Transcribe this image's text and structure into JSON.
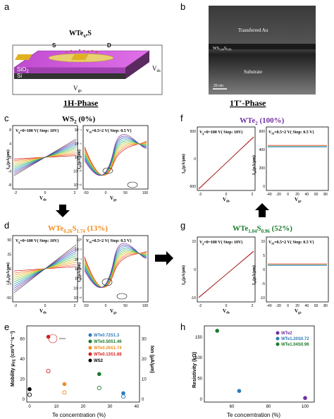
{
  "panels": {
    "a": {
      "letter": "a",
      "compound": "WTe",
      "x_sub": "x",
      "s_sub": "2(1-x)",
      "s": "S",
      "d": "D",
      "sio2": "SiO",
      "sio2_sub": "2",
      "si": "Si",
      "vds": "V",
      "vds_sub": "ds",
      "vgs": "V",
      "vgs_sub": "gs",
      "phase": "1H-Phase"
    },
    "b": {
      "letter": "b",
      "au": "Transferred Au",
      "ws": "WS",
      "ws_sub": "1.04",
      "ws_s": "S",
      "ws_sub2": "0.96",
      "substrate": "Substrate",
      "scale": "20 nm",
      "phase": "1T′-Phase"
    },
    "c": {
      "letter": "c",
      "title": "WS",
      "title_sub": "2",
      "title_pct": "(0%)",
      "left_legend": "V",
      "left_legend_sub": "g",
      "left_legend_rest": "=0~100 V( Step: 10V)",
      "right_legend": "V",
      "right_legend_sub": "ds",
      "right_legend_rest": "=0.5~2 V( Step: 0.5 V)",
      "left_yticks": [
        "8",
        "4",
        "0",
        "-4",
        "-8"
      ],
      "left_xticks": [
        "-2",
        "0",
        "2"
      ],
      "right_yticks": [
        "10⁻⁴",
        "10⁻⁶",
        "10⁻⁸",
        "10⁻¹⁰",
        "10⁻¹²"
      ],
      "right_xticks": [
        "-50",
        "0",
        "50",
        "100"
      ]
    },
    "d": {
      "letter": "d",
      "title": "WTe",
      "title_sub1": "0.26",
      "title_s": "S",
      "title_sub2": "1.74",
      "title_pct": "(13%)",
      "left_legend": "V",
      "left_legend_sub": "g",
      "left_legend_rest": "=0~100 V( Step: 10V)",
      "right_legend": "V",
      "right_legend_sub": "ds",
      "right_legend_rest": "=0.5~2 V( Step: 0.5 V)",
      "left_yticks": [
        "50",
        "25",
        "0",
        "-25",
        "-50"
      ],
      "left_xticks": [
        "-2",
        "0",
        "2"
      ],
      "right_yticks": [
        "10⁰",
        "10⁻²",
        "10⁻⁴",
        "10⁻⁶",
        "10⁻⁸",
        "10⁻¹⁰",
        "10⁻¹²"
      ],
      "right_xticks": [
        "-50",
        "0",
        "50",
        "100"
      ]
    },
    "f": {
      "letter": "f",
      "title": "WTe",
      "title_sub": "2",
      "title_pct": "(100%)",
      "left_legend": "V",
      "left_legend_sub": "g",
      "left_legend_rest": "=0~100 V( Step: 10V)",
      "right_legend": "V",
      "right_legend_sub": "ds",
      "right_legend_rest": "=0.5~2 V( Step: 0.5 V)",
      "left_yticks": [
        "500",
        "0",
        "-500"
      ],
      "left_xticks": [
        "-2",
        "0",
        "2"
      ],
      "right_yticks": [
        "600",
        "400",
        "200",
        "0"
      ],
      "right_xticks": [
        "-40",
        "-20",
        "0",
        "20",
        "40",
        "60",
        "80"
      ]
    },
    "g": {
      "letter": "g",
      "title": "WTe",
      "title_sub1": "1.04",
      "title_s": "S",
      "title_sub2": "0.96",
      "title_pct": "(52%)",
      "left_legend": "V",
      "left_legend_sub": "g",
      "left_legend_rest": "=0~100 V( Step: 10V)",
      "right_legend": "V",
      "right_legend_sub": "ds",
      "right_legend_rest": "=0.5~2 V( Step: 0.5 V)",
      "left_yticks": [
        "10",
        "0",
        "-10"
      ],
      "left_xticks": [
        "-2",
        "0",
        "2"
      ],
      "right_yticks": [
        "10",
        "5",
        "0",
        "-5",
        "-10"
      ],
      "right_xticks": [
        "-40",
        "-20",
        "0",
        "20",
        "40",
        "60",
        "80"
      ]
    },
    "e": {
      "letter": "e",
      "ylabel_left": "Mobility μ",
      "ylabel_left_sub": "FE",
      "ylabel_left_unit": "(cm²V⁻¹s⁻¹)",
      "ylabel_right": "Ion (μA/μm)",
      "xlabel": "Te concerntration (%)",
      "left_yticks": [
        "0",
        "20",
        "40",
        "60"
      ],
      "right_yticks": [
        "0",
        "10",
        "20",
        "30"
      ],
      "xticks": [
        "0",
        "10",
        "20",
        "30",
        "40"
      ],
      "legend": [
        "WTe0.72S1.3",
        "WTe0.50S1.46",
        "WTe0.26S1.74",
        "WTe0.13S1.88",
        "WS2"
      ]
    },
    "h": {
      "letter": "h",
      "ylabel": "Resistivity (kΩ)",
      "xlabel": "Te concerntration (%)",
      "yticks": [
        "0",
        "50",
        "100",
        "150"
      ],
      "xticks": [
        "60",
        "80",
        "100"
      ],
      "legend": [
        "WTe2",
        "WTe1.20S0.72",
        "WTe1.04S0.96"
      ]
    }
  },
  "axis_labels": {
    "ids": "I",
    "ids_sub": "ds",
    "ids_unit": "(μA/μm)",
    "vds": "V",
    "vds_sub": "ds",
    "vgs": "V",
    "vgs_sub": "gs"
  },
  "colors": {
    "purple": "#7030a0",
    "orange": "#f08c1e",
    "green": "#1a7a2a",
    "blue": "#2f7ab9",
    "red": "#d62020"
  },
  "chart_data": [
    {
      "type": "scatter",
      "title": "",
      "xlabel": "Te concerntration (%)",
      "ylabel": "Mobility / Ion",
      "xlim": [
        0,
        40
      ],
      "ylim": [
        0,
        70
      ],
      "series": [
        {
          "name": "WTe0.72S1.3",
          "x": [
            35
          ],
          "y": [
            6
          ]
        },
        {
          "name": "WTe0.50S1.46",
          "x": [
            26
          ],
          "y": [
            25
          ]
        },
        {
          "name": "WTe0.26S1.74",
          "x": [
            13
          ],
          "y": [
            15
          ]
        },
        {
          "name": "WTe0.13S1.88",
          "x": [
            7
          ],
          "y": [
            62
          ]
        },
        {
          "name": "WS2",
          "x": [
            0
          ],
          "y": [
            10
          ]
        }
      ]
    },
    {
      "type": "scatter",
      "title": "",
      "xlabel": "Te concerntration (%)",
      "ylabel": "Resistivity (kΩ)",
      "xlim": [
        45,
        105
      ],
      "ylim": [
        0,
        170
      ],
      "series": [
        {
          "name": "WTe2",
          "x": [
            100
          ],
          "y": [
            3
          ]
        },
        {
          "name": "WTe1.20S0.72",
          "x": [
            64
          ],
          "y": [
            20
          ]
        },
        {
          "name": "WTe1.04S0.96",
          "x": [
            52
          ],
          "y": [
            165
          ]
        }
      ]
    }
  ]
}
